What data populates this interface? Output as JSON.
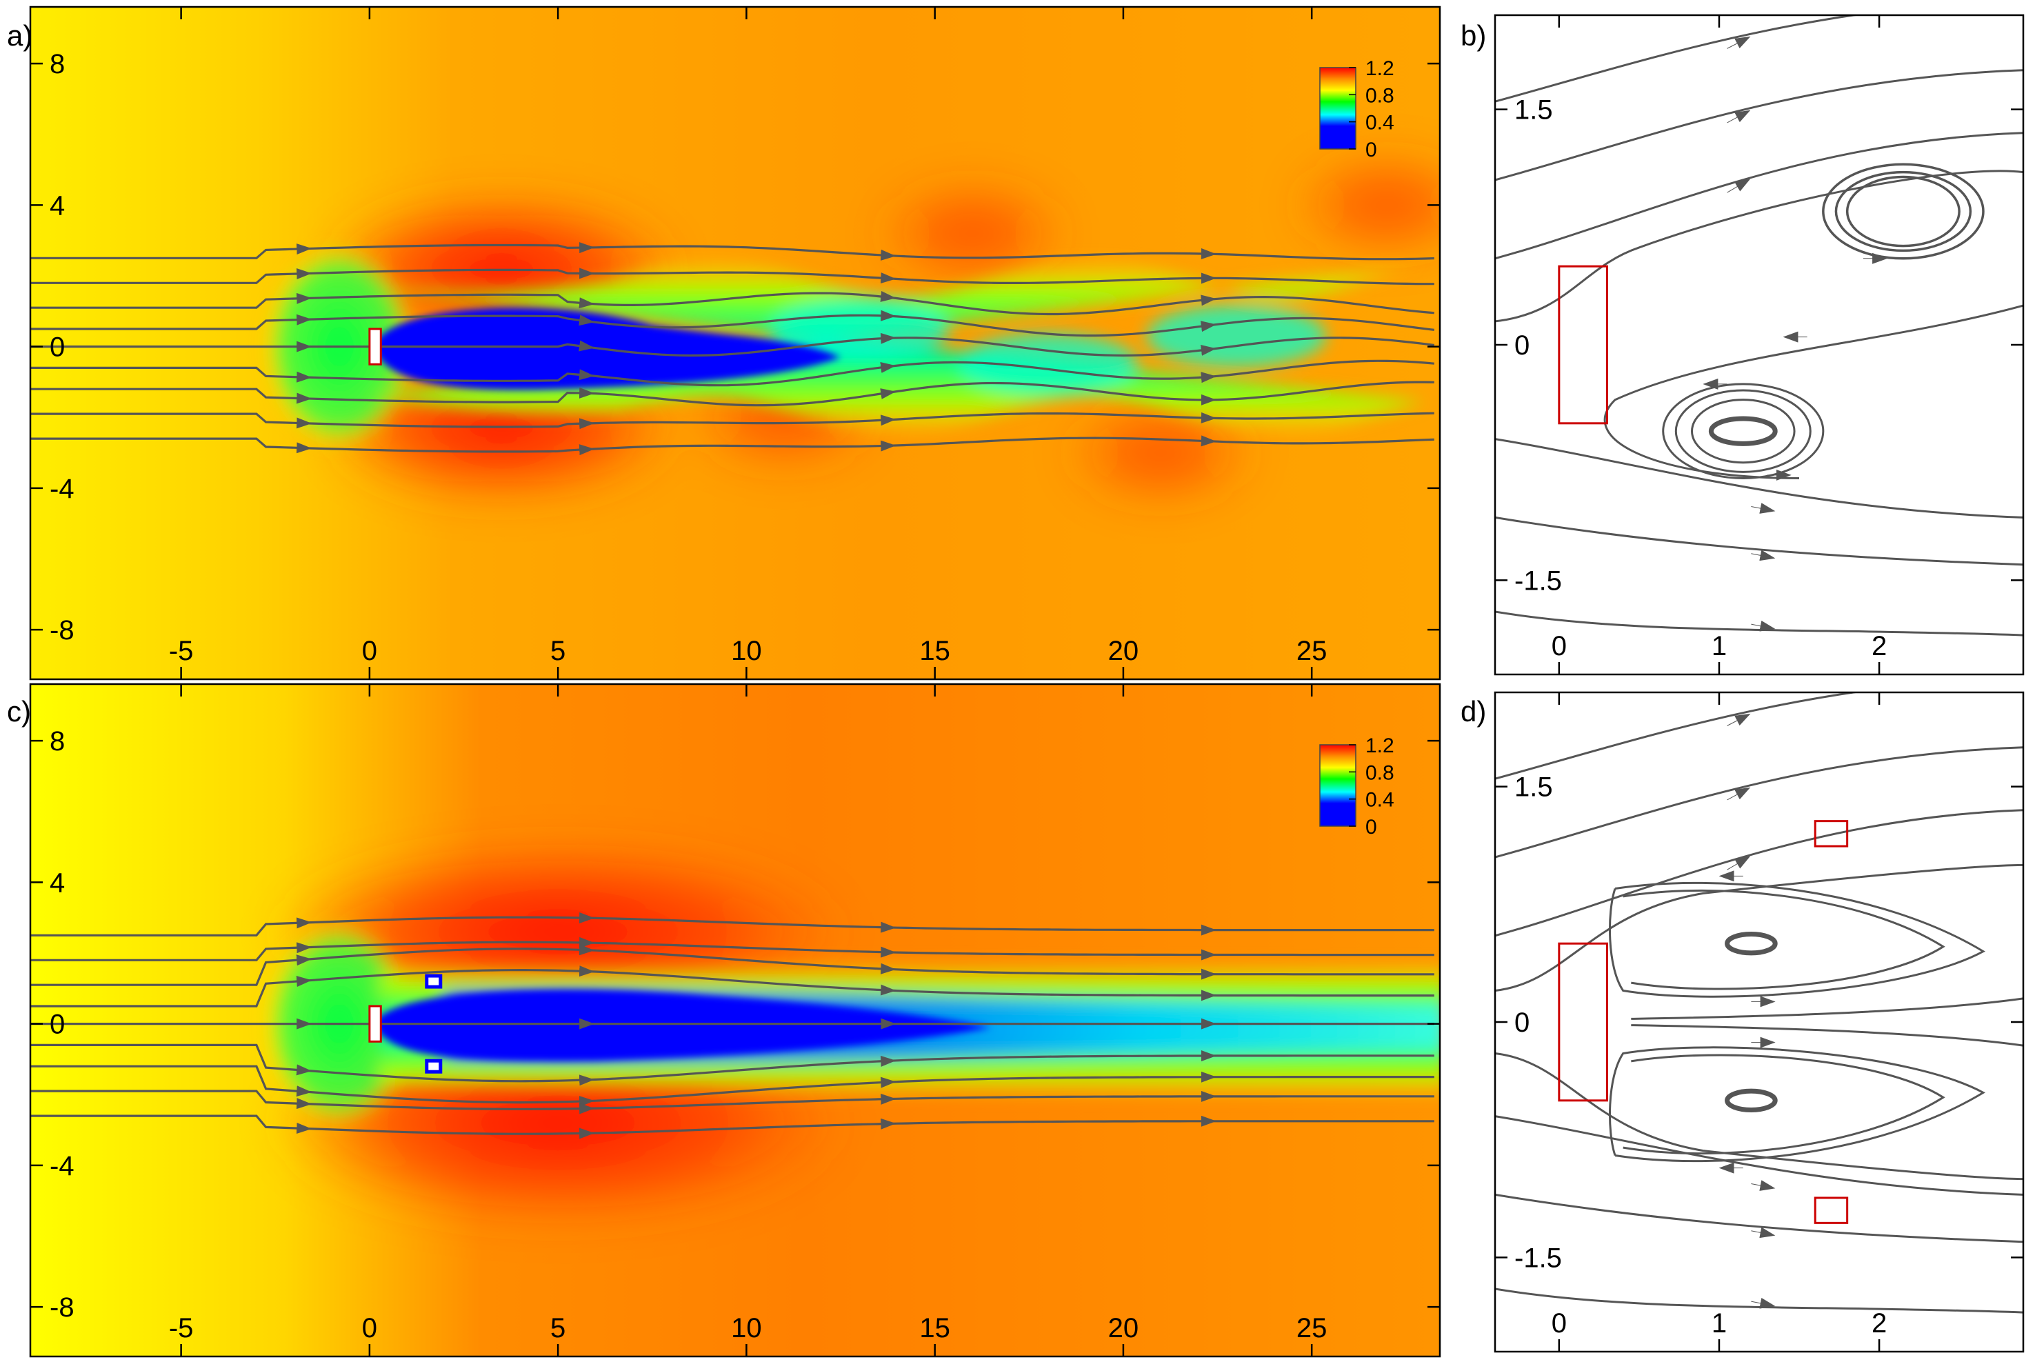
{
  "chart_data": [
    {
      "panel": "a)",
      "type": "heatmap",
      "xlim": [
        -9,
        28.4
      ],
      "ylim": [
        -9.4,
        9.6
      ],
      "x_ticks": [
        "-5",
        "0",
        "5",
        "10",
        "15",
        "20",
        "25"
      ],
      "x_tick_values": [
        -5,
        0,
        5,
        10,
        15,
        20,
        25
      ],
      "y_ticks": [
        "8",
        "4",
        "0",
        "-4",
        "-8"
      ],
      "y_tick_values": [
        8,
        4,
        0,
        -4,
        -8
      ],
      "colorbar": {
        "range": [
          0,
          1.2
        ],
        "labels": [
          "1.2",
          "0.8",
          "0.4",
          "0"
        ],
        "label_values": [
          1.2,
          0.8,
          0.4,
          0
        ]
      },
      "body": {
        "x": [
          0,
          0.3
        ],
        "y": [
          -0.5,
          0.5
        ]
      },
      "wake": "oscillating",
      "streamline_y0": [
        2.5,
        1.8,
        1.1,
        0.5,
        0,
        -0.6,
        -1.2,
        -1.9,
        -2.6
      ]
    },
    {
      "panel": "b)",
      "type": "streamlines",
      "xlim": [
        -0.4,
        2.9
      ],
      "ylim": [
        -2.1,
        2.1
      ],
      "x_ticks": [
        "0",
        "1",
        "2"
      ],
      "x_tick_values": [
        0,
        1,
        2
      ],
      "y_ticks": [
        "1.5",
        "0",
        "-1.5"
      ],
      "y_tick_values": [
        1.5,
        0,
        -1.5
      ],
      "body": {
        "x": [
          0,
          0.3
        ],
        "y": [
          -0.5,
          0.5
        ]
      },
      "vortex_centers": [
        [
          1.8,
          0.85
        ],
        [
          1.1,
          -0.55
        ]
      ]
    },
    {
      "panel": "c)",
      "type": "heatmap",
      "xlim": [
        -9,
        28.4
      ],
      "ylim": [
        -9.4,
        9.6
      ],
      "x_ticks": [
        "-5",
        "0",
        "5",
        "10",
        "15",
        "20",
        "25"
      ],
      "x_tick_values": [
        -5,
        0,
        5,
        10,
        15,
        20,
        25
      ],
      "y_ticks": [
        "8",
        "4",
        "0",
        "-4",
        "-8"
      ],
      "y_tick_values": [
        8,
        4,
        0,
        -4,
        -8
      ],
      "colorbar": {
        "range": [
          0,
          1.2
        ],
        "labels": [
          "1.2",
          "0.8",
          "0.4",
          "0"
        ],
        "label_values": [
          1.2,
          0.8,
          0.4,
          0
        ]
      },
      "body": {
        "x": [
          0,
          0.3
        ],
        "y": [
          -0.5,
          0.5
        ]
      },
      "control_cylinders": [
        [
          1.7,
          1.2
        ],
        [
          1.7,
          -1.2
        ]
      ],
      "wake": "steady-symmetric",
      "streamline_y0": [
        2.5,
        1.8,
        1.1,
        0.5,
        0,
        -0.6,
        -1.2,
        -1.9,
        -2.6
      ]
    },
    {
      "panel": "d)",
      "type": "streamlines",
      "xlim": [
        -0.4,
        2.9
      ],
      "ylim": [
        -2.1,
        2.1
      ],
      "x_ticks": [
        "0",
        "1",
        "2"
      ],
      "x_tick_values": [
        0,
        1,
        2
      ],
      "y_ticks": [
        "1.5",
        "0",
        "-1.5"
      ],
      "y_tick_values": [
        1.5,
        0,
        -1.5
      ],
      "body": {
        "x": [
          0,
          0.3
        ],
        "y": [
          -0.5,
          0.5
        ]
      },
      "control_cylinders": [
        [
          1.7,
          1.2
        ],
        [
          1.7,
          -1.2
        ]
      ],
      "vortex_centers": [
        [
          1.2,
          0.5
        ],
        [
          1.2,
          -0.5
        ]
      ]
    }
  ],
  "colors": {
    "streamline": "#555555",
    "body_outline": "#cc0000",
    "colormap": [
      "#0000ff",
      "#00ffff",
      "#00ff00",
      "#ffff00",
      "#ff8c00",
      "#ff0000"
    ]
  }
}
